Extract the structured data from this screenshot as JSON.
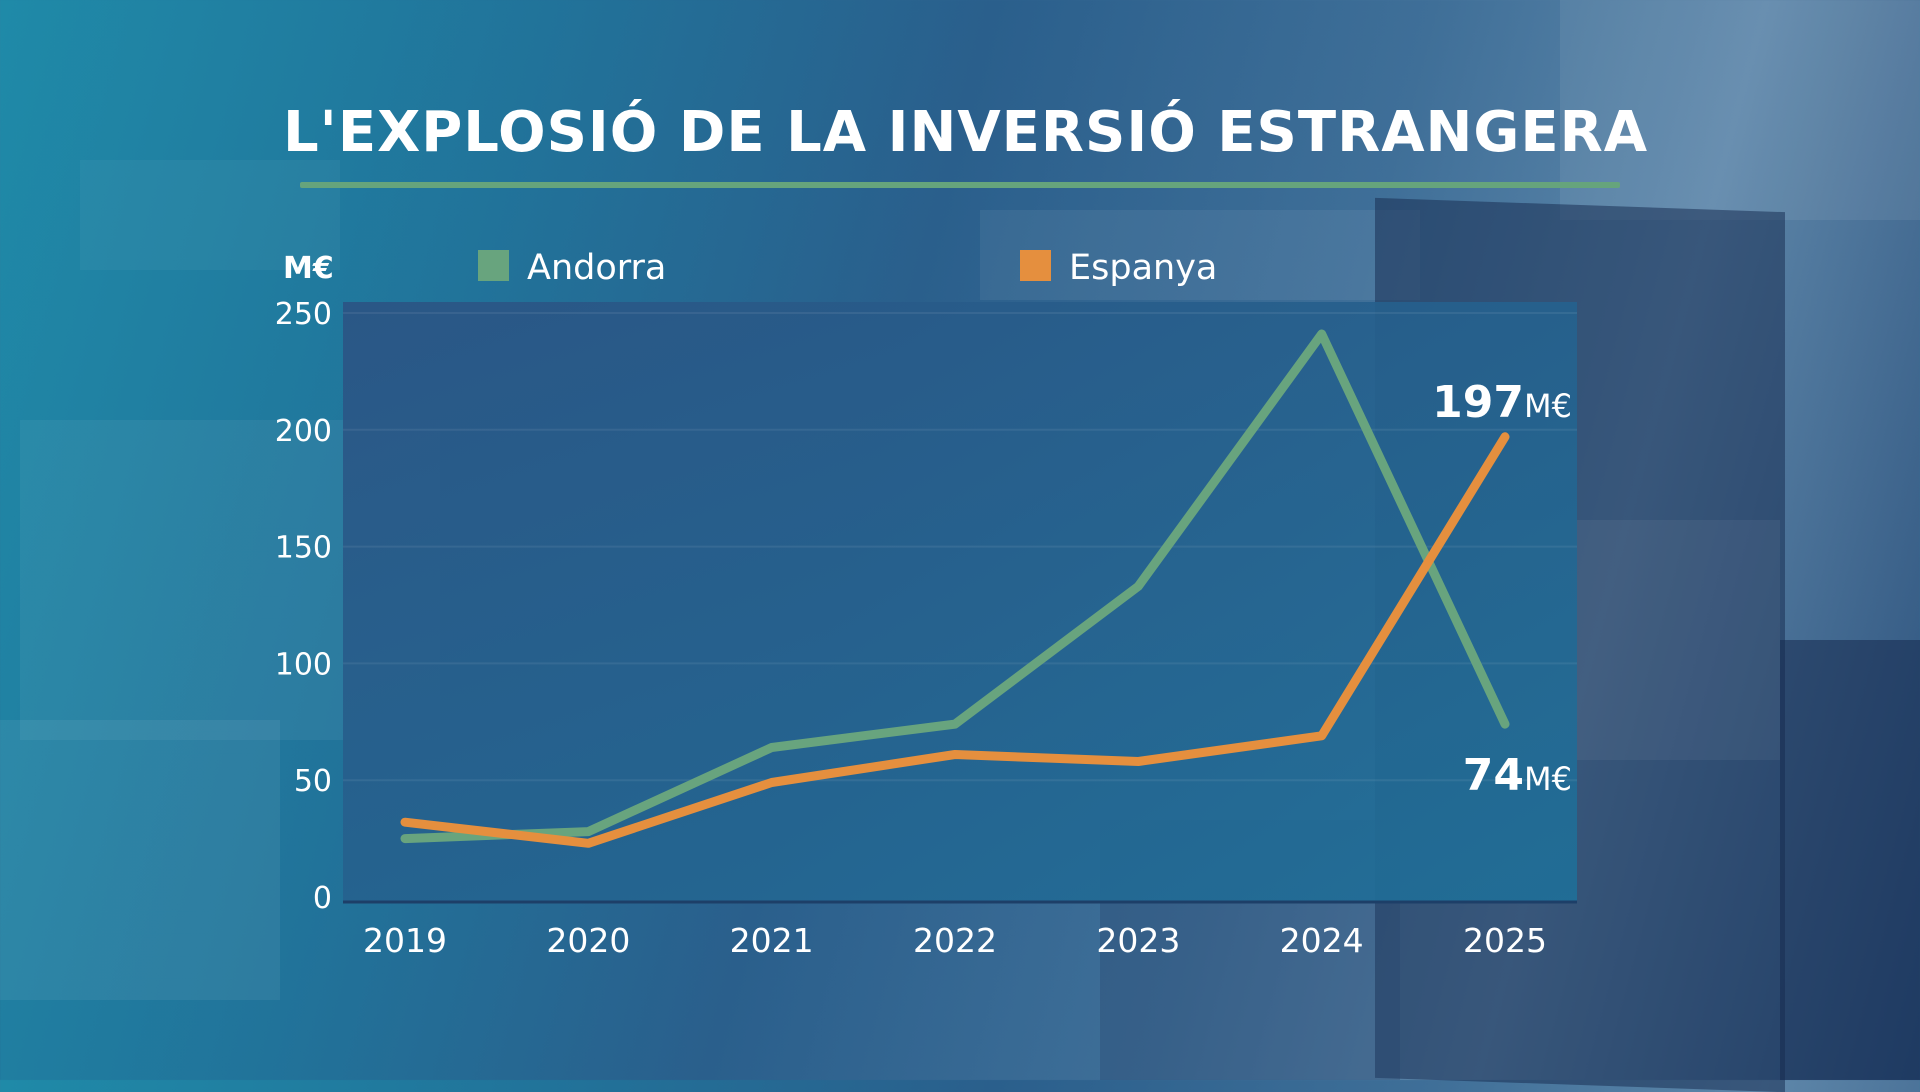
{
  "title": "L'EXPLOSIÓ DE LA INVERSIÓ ESTRANGERA",
  "colors": {
    "andorra": "#68a47e",
    "espanya": "#e58f3e",
    "plot_bg": "#25608e",
    "title_rule": "#66a47c"
  },
  "chart_data": {
    "type": "line",
    "title": "L'EXPLOSIÓ DE LA INVERSIÓ ESTRANGERA",
    "ylabel": "M€",
    "xlabel": "",
    "x": [
      "2019",
      "2020",
      "2021",
      "2022",
      "2023",
      "2024",
      "2025"
    ],
    "ylim": [
      0,
      250
    ],
    "yticks": [
      0,
      50,
      100,
      150,
      200,
      250
    ],
    "grid": true,
    "legend_position": "top",
    "series": [
      {
        "name": "Andorra",
        "color": "#68a47e",
        "values": [
          25,
          28,
          64,
          74,
          133,
          241,
          74
        ]
      },
      {
        "name": "Espanya",
        "color": "#e58f3e",
        "values": [
          32,
          23,
          49,
          61,
          58,
          69,
          197
        ]
      }
    ],
    "annotations": [
      {
        "series": "Espanya",
        "x": "2025",
        "value": "197",
        "unit": "M€"
      },
      {
        "series": "Andorra",
        "x": "2025",
        "value": "74",
        "unit": "M€"
      }
    ]
  }
}
